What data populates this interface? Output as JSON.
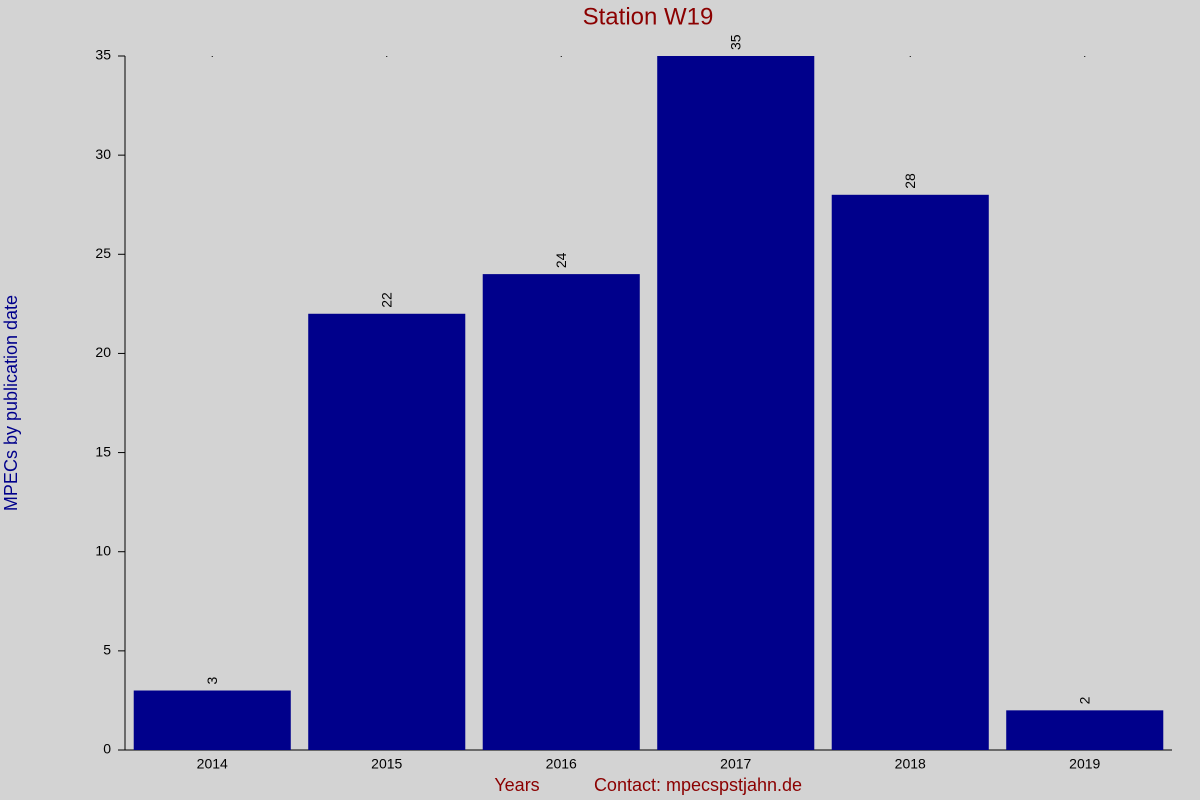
{
  "chart_data": {
    "type": "bar",
    "title": "Station W19",
    "y_label": "MPECs by publication date",
    "x_label": "Years",
    "note": "Contact: mpecspstjahn.de",
    "categories": [
      "2014",
      "2015",
      "2016",
      "2017",
      "2018",
      "2019"
    ],
    "values": [
      3,
      22,
      24,
      35,
      28,
      2
    ],
    "color": "#00008b",
    "ylim": [
      0,
      35
    ],
    "yticks": [
      0,
      5,
      10,
      15,
      20,
      25,
      30,
      35
    ],
    "grid": false
  }
}
